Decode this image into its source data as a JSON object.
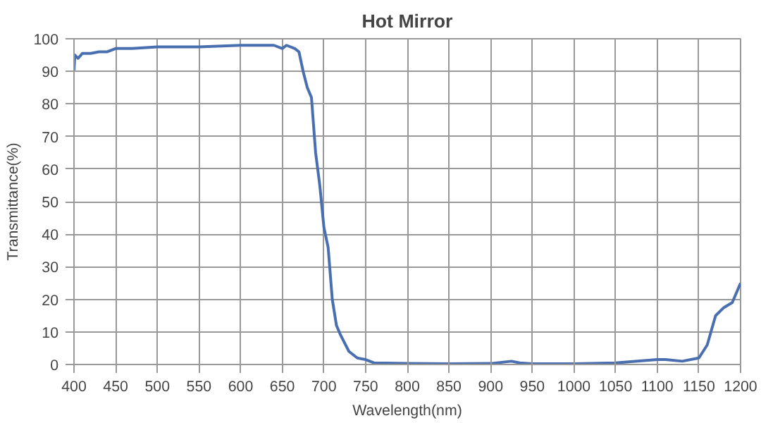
{
  "chart_data": {
    "type": "line",
    "title": "Hot Mirror",
    "xlabel": "Wavelength(nm)",
    "ylabel": "Transmittance(%)",
    "xlim": [
      400,
      1200
    ],
    "ylim": [
      0,
      100
    ],
    "xticks": [
      400,
      450,
      500,
      550,
      600,
      650,
      700,
      750,
      800,
      850,
      900,
      950,
      1000,
      1050,
      1100,
      1150,
      1200
    ],
    "yticks": [
      0,
      10,
      20,
      30,
      40,
      50,
      60,
      70,
      80,
      90,
      100
    ],
    "grid": true,
    "marker": "none",
    "line_style": "solid",
    "series": [
      {
        "color": "#4a6fb0",
        "x": [
          400,
          401,
          405,
          410,
          420,
          430,
          440,
          450,
          470,
          500,
          550,
          600,
          640,
          650,
          655,
          665,
          670,
          675,
          680,
          685,
          690,
          695,
          700,
          705,
          710,
          715,
          720,
          730,
          740,
          750,
          760,
          800,
          850,
          900,
          925,
          935,
          950,
          1000,
          1050,
          1100,
          1110,
          1130,
          1150,
          1160,
          1170,
          1180,
          1190,
          1200
        ],
        "values": [
          90,
          95,
          94,
          95.5,
          95.5,
          96,
          96,
          97,
          97,
          97.5,
          97.5,
          98,
          98,
          97,
          98,
          97,
          96,
          90,
          85,
          82,
          65,
          55,
          42,
          36,
          20,
          12,
          9,
          4,
          2,
          1.5,
          0.5,
          0.3,
          0.2,
          0.3,
          1,
          0.5,
          0.2,
          0.2,
          0.5,
          1.5,
          1.5,
          1,
          2,
          6,
          15,
          17.5,
          19,
          25
        ]
      }
    ]
  }
}
